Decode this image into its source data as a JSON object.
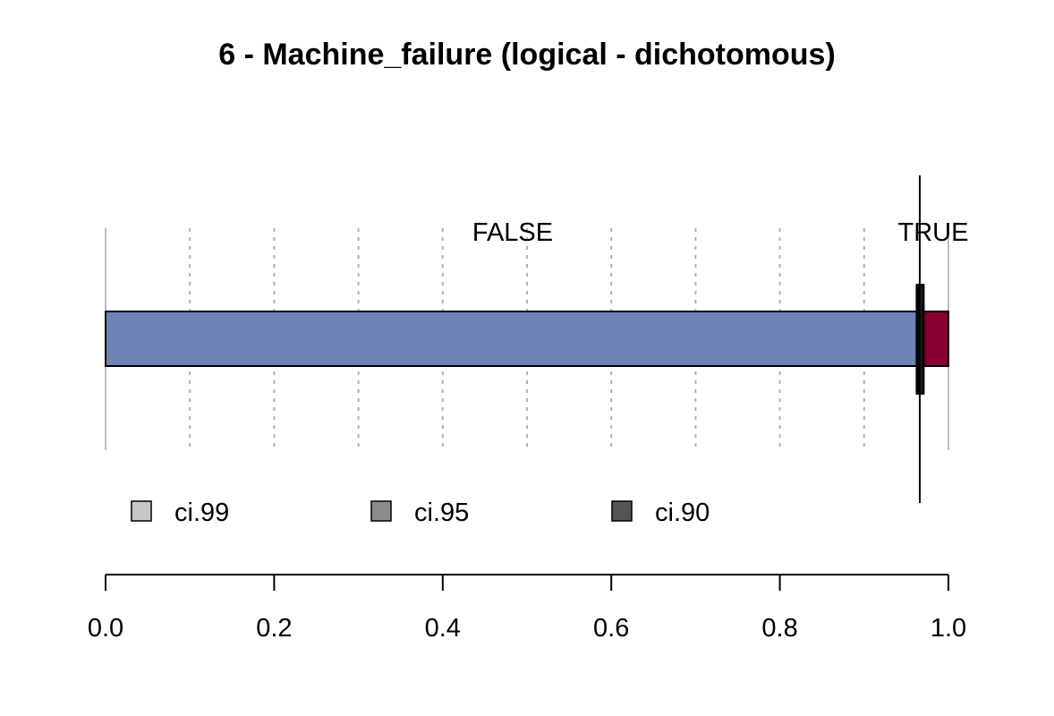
{
  "chart_data": {
    "type": "bar",
    "orientation": "horizontal-stacked-proportion",
    "title": "6 - Machine_failure (logical - dichotomous)",
    "categories": [
      "FALSE",
      "TRUE"
    ],
    "values": [
      0.966,
      0.034
    ],
    "colors": [
      "#6f83b7",
      "#850031"
    ],
    "ci_marker": {
      "value": 0.966,
      "ci99": [
        0.962,
        0.971
      ],
      "ci95": [
        0.963,
        0.97
      ],
      "ci90": [
        0.964,
        0.969
      ]
    },
    "reference_line": 0.966,
    "legend": {
      "placement": "bottom-left",
      "items": [
        {
          "label": "ci.99",
          "color": "#c8c8c8"
        },
        {
          "label": "ci.95",
          "color": "#8c8c8c"
        },
        {
          "label": "ci.90",
          "color": "#555555"
        }
      ]
    },
    "xlim": [
      0,
      1
    ],
    "xticks": [
      0.0,
      0.2,
      0.4,
      0.6,
      0.8,
      1.0
    ],
    "xtick_labels": [
      "0.0",
      "0.2",
      "0.4",
      "0.6",
      "0.8",
      "1.0"
    ],
    "grid_minor": [
      0.1,
      0.2,
      0.3,
      0.4,
      0.5,
      0.6,
      0.7,
      0.8,
      0.9
    ],
    "grid": true
  }
}
